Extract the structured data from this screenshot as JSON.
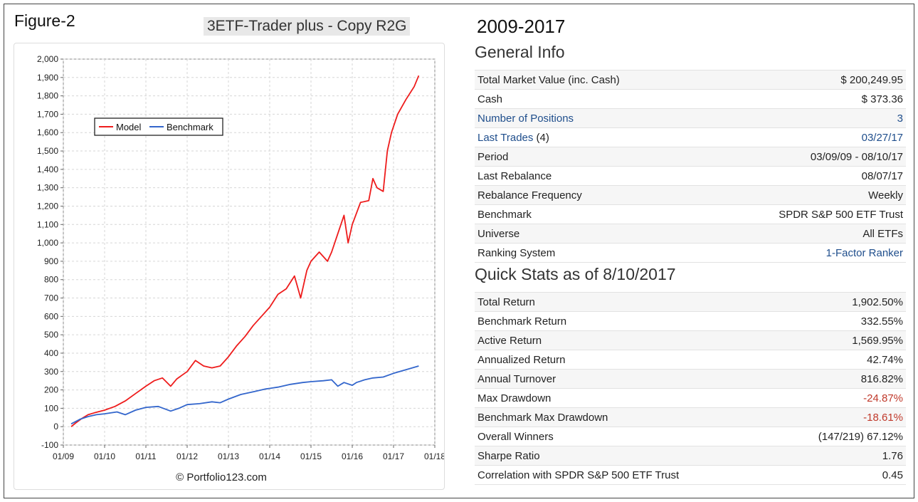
{
  "figure_label": "Figure-2",
  "model_title": "3ETF-Trader plus - Copy R2G",
  "years": "2009-2017",
  "general_info": {
    "title": "General Info",
    "rows": [
      {
        "label": "Total Market Value (inc. Cash)",
        "value": "$ 200,249.95"
      },
      {
        "label": "Cash",
        "value": "$ 373.36"
      },
      {
        "label": "Number of Positions",
        "value": "3"
      },
      {
        "label": "Last Trades",
        "label_suffix": " (4)",
        "value": "03/27/17"
      },
      {
        "label": "Period",
        "value": "03/09/09 - 08/10/17"
      },
      {
        "label": "Last Rebalance",
        "value": "08/07/17"
      },
      {
        "label": "Rebalance Frequency",
        "value": "Weekly"
      },
      {
        "label": "Benchmark",
        "value": "SPDR S&P 500 ETF Trust"
      },
      {
        "label": "Universe",
        "value": "All ETFs"
      },
      {
        "label": "Ranking System",
        "value": "1-Factor Ranker"
      }
    ]
  },
  "quick_stats": {
    "title": "Quick Stats as of 8/10/2017",
    "rows": [
      {
        "label": "Total Return",
        "value": "1,902.50%"
      },
      {
        "label": "Benchmark Return",
        "value": "332.55%"
      },
      {
        "label": "Active Return",
        "value": "1,569.95%"
      },
      {
        "label": "Annualized Return",
        "value": "42.74%"
      },
      {
        "label": "Annual Turnover",
        "value": "816.82%"
      },
      {
        "label": "Max Drawdown",
        "value": "-24.87%"
      },
      {
        "label": "Benchmark Max Drawdown",
        "value": "-18.61%"
      },
      {
        "label": "Overall Winners",
        "value": "(147/219) 67.12%"
      },
      {
        "label": "Sharpe Ratio",
        "value": "1.76"
      },
      {
        "label": "Correlation with SPDR S&P 500 ETF Trust",
        "value": "0.45"
      }
    ]
  },
  "colors": {
    "model": "#ee1c1c",
    "benchmark": "#3366cc",
    "link": "#1f4e8c",
    "negative": "#c0392b"
  },
  "chart_data": {
    "type": "line",
    "title": "",
    "xlabel": "",
    "ylabel": "",
    "ylim": [
      -100,
      2000
    ],
    "yticks": [
      -100,
      0,
      100,
      200,
      300,
      400,
      500,
      600,
      700,
      800,
      900,
      1000,
      1100,
      1200,
      1300,
      1400,
      1500,
      1600,
      1700,
      1800,
      1900,
      2000
    ],
    "ytick_labels": [
      "-100",
      "0",
      "100",
      "200",
      "300",
      "400",
      "500",
      "600",
      "700",
      "800",
      "900",
      "1,000",
      "1,100",
      "1,200",
      "1,300",
      "1,400",
      "1,500",
      "1,600",
      "1,700",
      "1,800",
      "1,900",
      "2,000"
    ],
    "xlim": [
      2009.0,
      2018.0
    ],
    "xticks": [
      2009,
      2010,
      2011,
      2012,
      2013,
      2014,
      2015,
      2016,
      2017,
      2018
    ],
    "xtick_labels": [
      "01/09",
      "01/10",
      "01/11",
      "01/12",
      "01/13",
      "01/14",
      "01/15",
      "01/16",
      "01/17",
      "01/18"
    ],
    "grid": true,
    "legend_position": "upper-left",
    "credit": "© Portfolio123.com",
    "series": [
      {
        "name": "Model",
        "x": [
          2009.19,
          2009.3,
          2009.45,
          2009.6,
          2009.75,
          2010.0,
          2010.25,
          2010.5,
          2010.75,
          2011.0,
          2011.2,
          2011.4,
          2011.6,
          2011.75,
          2012.0,
          2012.2,
          2012.4,
          2012.6,
          2012.8,
          2013.0,
          2013.2,
          2013.4,
          2013.6,
          2013.8,
          2014.0,
          2014.2,
          2014.4,
          2014.6,
          2014.75,
          2014.9,
          2015.0,
          2015.2,
          2015.4,
          2015.5,
          2015.65,
          2015.8,
          2015.9,
          2016.0,
          2016.2,
          2016.4,
          2016.5,
          2016.6,
          2016.75,
          2016.85,
          2016.95,
          2017.1,
          2017.3,
          2017.5,
          2017.61
        ],
        "y": [
          0,
          20,
          45,
          65,
          75,
          90,
          110,
          140,
          180,
          220,
          250,
          265,
          220,
          260,
          300,
          360,
          330,
          320,
          330,
          380,
          440,
          490,
          550,
          600,
          650,
          720,
          750,
          820,
          700,
          850,
          900,
          950,
          900,
          950,
          1050,
          1150,
          1000,
          1100,
          1220,
          1230,
          1350,
          1300,
          1280,
          1500,
          1600,
          1700,
          1780,
          1850,
          1910
        ]
      },
      {
        "name": "Benchmark",
        "x": [
          2009.19,
          2009.4,
          2009.6,
          2009.8,
          2010.0,
          2010.3,
          2010.5,
          2010.75,
          2011.0,
          2011.3,
          2011.6,
          2011.8,
          2012.0,
          2012.3,
          2012.6,
          2012.8,
          2013.0,
          2013.3,
          2013.6,
          2013.9,
          2014.2,
          2014.5,
          2014.8,
          2015.0,
          2015.3,
          2015.5,
          2015.65,
          2015.8,
          2016.0,
          2016.1,
          2016.3,
          2016.5,
          2016.75,
          2017.0,
          2017.3,
          2017.61
        ],
        "y": [
          15,
          40,
          55,
          65,
          70,
          80,
          65,
          90,
          105,
          110,
          85,
          100,
          120,
          125,
          135,
          130,
          150,
          175,
          190,
          205,
          215,
          230,
          240,
          245,
          250,
          255,
          220,
          240,
          225,
          240,
          255,
          265,
          270,
          290,
          310,
          330
        ]
      }
    ]
  }
}
